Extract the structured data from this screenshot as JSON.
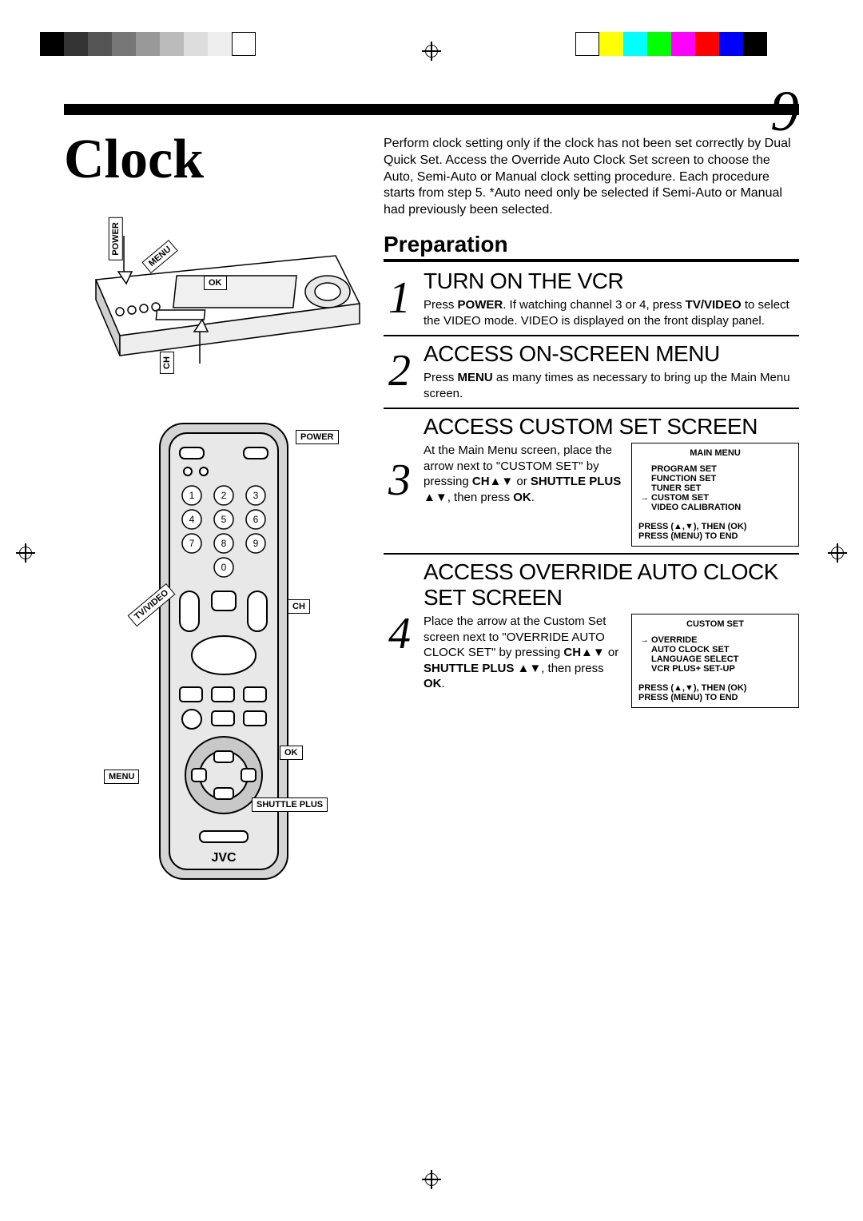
{
  "registration_colors_left": [
    "#000000",
    "#333333",
    "#555555",
    "#777777",
    "#999999",
    "#bbbbbb",
    "#dddddd",
    "#eeeeee",
    "#ffffff"
  ],
  "registration_colors_right": [
    "#ffffff",
    "#ffff00",
    "#00ffff",
    "#00ff00",
    "#ff00ff",
    "#ff0000",
    "#0000ff",
    "#000000"
  ],
  "page_number": "9",
  "title": "Clock",
  "intro_html": "Perform clock setting only if the clock has not been set correctly by Dual Quick Set. Access the Override Auto Clock Set screen to choose the Auto, Semi-Auto or Manual clock setting procedure. Each procedure starts from step 5. *Auto need only be selected if Semi-Auto or Manual had previously been selected.",
  "preparation_heading": "Preparation",
  "vcr_labels": {
    "power": "POWER",
    "menu": "MENU",
    "ok": "OK",
    "ch": "CH"
  },
  "remote_labels": {
    "power": "POWER",
    "tvvideo": "TV/VIDEO",
    "ch": "CH",
    "ok": "OK",
    "menu": "MENU",
    "shuttle": "SHUTTLE PLUS"
  },
  "remote_brand": "JVC",
  "steps": [
    {
      "num": "1",
      "title": "TURN ON THE VCR",
      "body_html": "Press <b>POWER</b>. If watching channel 3 or 4, press <b>TV/VIDEO</b> to select the VIDEO mode. VIDEO is displayed on the front display panel."
    },
    {
      "num": "2",
      "title": "ACCESS ON-SCREEN MENU",
      "body_html": "Press <b>MENU</b> as many times as necessary to bring up the Main Menu screen."
    },
    {
      "num": "3",
      "title": "ACCESS CUSTOM SET SCREEN",
      "body_html": "At the Main Menu screen, place the arrow next to \"CUSTOM SET\" by pressing <b>CH▲▼</b> or <b>SHUTTLE PLUS ▲▼</b>, then press <b>OK</b>.",
      "osd": {
        "title": "MAIN MENU",
        "items": [
          "PROGRAM SET",
          "FUNCTION SET",
          "TUNER SET",
          "CUSTOM SET",
          "VIDEO CALIBRATION"
        ],
        "selected_index": 3,
        "footer": "PRESS (▲,▼), THEN (OK)\nPRESS (MENU) TO END"
      }
    },
    {
      "num": "4",
      "title": "ACCESS OVERRIDE AUTO CLOCK SET SCREEN",
      "body_html": "Place the arrow at the Custom Set screen next to \"OVERRIDE AUTO CLOCK SET\" by pressing <b>CH▲▼</b> or <b>SHUTTLE PLUS ▲▼</b>, then press <b>OK</b>.",
      "osd": {
        "title": "CUSTOM SET",
        "items": [
          "OVERRIDE",
          "AUTO CLOCK SET",
          "LANGUAGE SELECT",
          "VCR PLUS+ SET-UP"
        ],
        "selected_index": 0,
        "footer": "PRESS (▲,▼), THEN (OK)\nPRESS (MENU) TO END"
      }
    }
  ]
}
